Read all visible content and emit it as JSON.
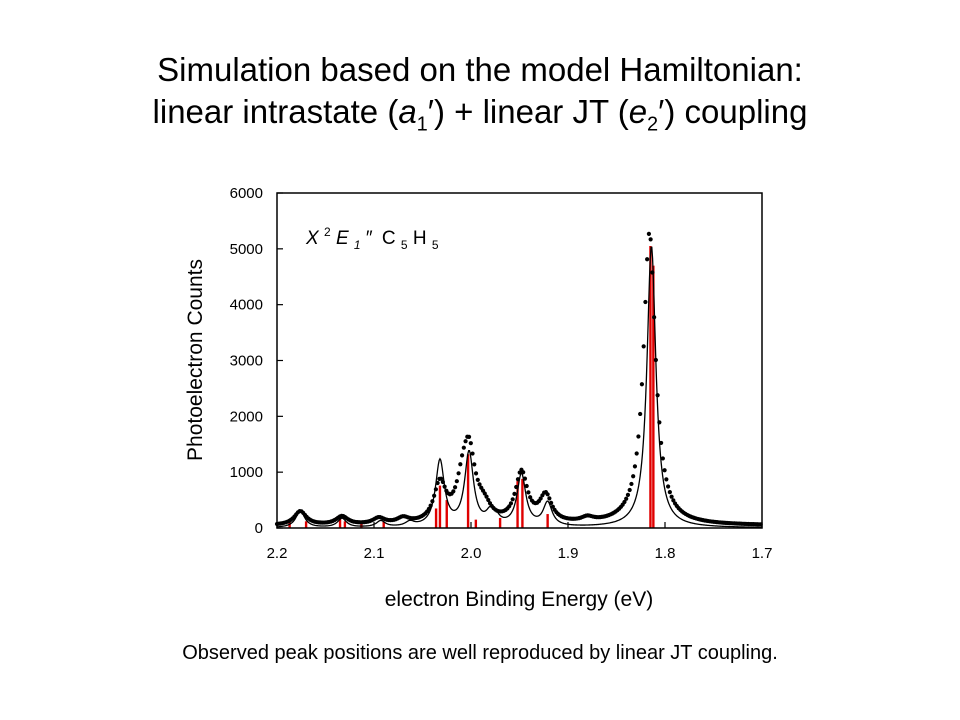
{
  "title_line1": "Simulation based on the model Hamiltonian:",
  "title_line2": {
    "pre": "linear intrastate (",
    "a": "a",
    "a_sub": "1",
    "mid": "′) + linear JT (",
    "e": "e",
    "e_sub": "2",
    "post": "′) coupling"
  },
  "caption": "Observed peak positions are well reproduced by linear JT coupling.",
  "chart_data": {
    "type": "line",
    "xlabel": "electron Binding Energy (eV)",
    "ylabel": "Photoelectron Counts",
    "xlim": [
      2.2,
      1.7
    ],
    "ylim": [
      0,
      6000
    ],
    "x_ticks": [
      2.2,
      2.1,
      2.0,
      1.9,
      1.8,
      1.7
    ],
    "x_tick_labels": [
      "2.2",
      "2.1",
      "2.0",
      "1.9",
      "1.8",
      "1.7"
    ],
    "y_ticks": [
      0,
      1000,
      2000,
      3000,
      4000,
      5000,
      6000
    ],
    "y_tick_labels": [
      "0",
      "1000",
      "2000",
      "3000",
      "4000",
      "5000",
      "6000"
    ],
    "annotation": {
      "state": "X",
      "sup": "2",
      "term": "E",
      "term_sub": "1",
      "prime": "″",
      "molecule": "C",
      "m_sub1": "5",
      "m_h": "H",
      "m_sub2": "5"
    },
    "series": [
      {
        "kind": "stick",
        "color": "#e00000",
        "points": [
          [
            2.187,
            130
          ],
          [
            2.17,
            120
          ],
          [
            2.135,
            180
          ],
          [
            2.13,
            120
          ],
          [
            2.113,
            90
          ],
          [
            2.09,
            110
          ],
          [
            2.036,
            350
          ],
          [
            2.032,
            760
          ],
          [
            2.025,
            500
          ],
          [
            2.003,
            1320
          ],
          [
            1.995,
            150
          ],
          [
            1.97,
            180
          ],
          [
            1.952,
            840
          ],
          [
            1.947,
            880
          ],
          [
            1.921,
            250
          ],
          [
            1.815,
            5050
          ],
          [
            1.812,
            4700
          ]
        ]
      },
      {
        "kind": "line",
        "color": "#000000",
        "peaks": [
          [
            1.814,
            5050
          ],
          [
            2.002,
            1320
          ],
          [
            2.032,
            1180
          ],
          [
            1.948,
            930
          ],
          [
            1.921,
            420
          ],
          [
            1.98,
            200
          ],
          [
            2.133,
            160
          ],
          [
            2.176,
            300
          ],
          [
            2.093,
            110
          ],
          [
            2.063,
            80
          ],
          [
            1.975,
            120
          ]
        ],
        "peak_width": 0.0055
      },
      {
        "kind": "scatter",
        "color": "#000000",
        "peaks": [
          [
            1.816,
            5250
          ],
          [
            2.002,
            1180
          ],
          [
            2.032,
            700
          ],
          [
            2.009,
            520
          ],
          [
            1.948,
            900
          ],
          [
            1.923,
            480
          ],
          [
            1.985,
            160
          ],
          [
            2.133,
            150
          ],
          [
            2.176,
            250
          ],
          [
            2.095,
            110
          ],
          [
            2.07,
            100
          ],
          [
            1.88,
            80
          ],
          [
            1.99,
            120
          ]
        ],
        "peak_width": 0.0075,
        "baseline": 40,
        "step": 0.0018
      }
    ]
  }
}
